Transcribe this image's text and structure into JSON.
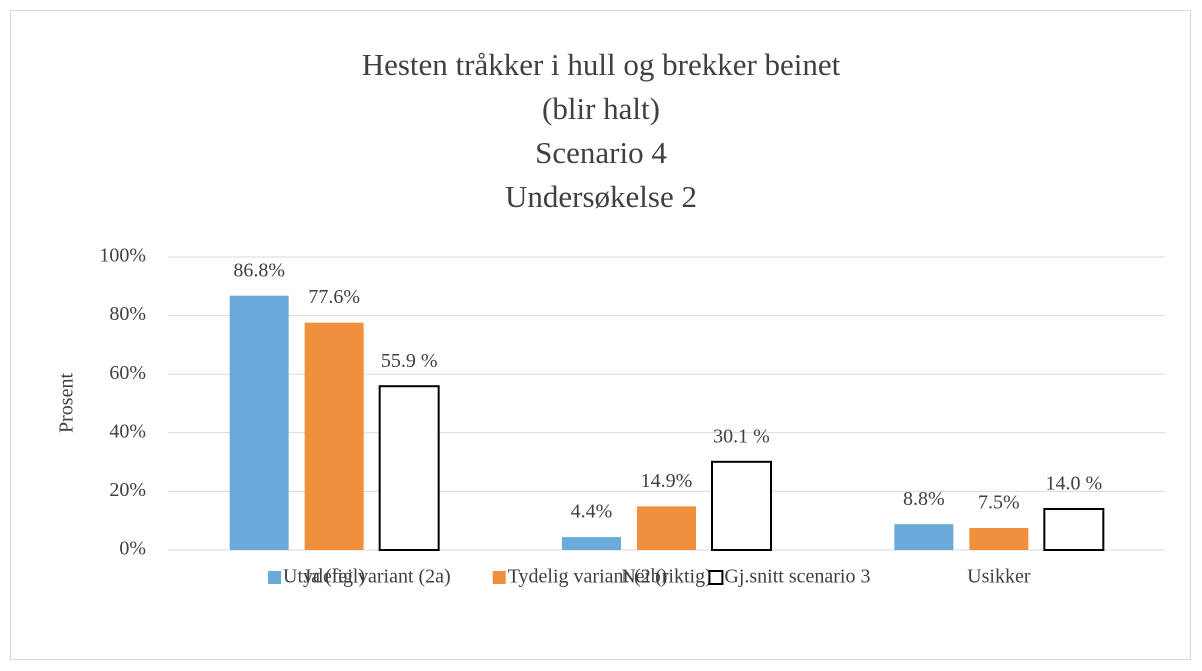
{
  "chart_data": {
    "type": "bar",
    "title": [
      "Hesten tråkker i hull og brekker beinet",
      "(blir halt)",
      "Scenario 4",
      "Undersøkelse 2"
    ],
    "ylabel": "Prosent",
    "categories": [
      "Ja (feil)",
      "Nei (riktig)",
      "Usikker"
    ],
    "series": [
      {
        "name": "Utydelig variant (2a)",
        "color": "#6aaadb",
        "values": [
          86.8,
          4.4,
          8.8
        ],
        "value_labels": [
          "86.8%",
          "4.4%",
          "8.8%"
        ]
      },
      {
        "name": "Tydelig variant (2b)",
        "color": "#f1903c",
        "values": [
          77.6,
          14.9,
          7.5
        ],
        "value_labels": [
          "77.6%",
          "14.9%",
          "7.5%"
        ]
      },
      {
        "name": "Gj.snitt scenario 3",
        "color": "#ffffff",
        "edgecolor": "#000000",
        "values": [
          55.9,
          30.1,
          14.0
        ],
        "value_labels": [
          "55.9 %",
          "30.1 %",
          "14.0 %"
        ]
      }
    ],
    "ylim": [
      0,
      100
    ],
    "yticks": [
      {
        "value": 0,
        "label": "0%"
      },
      {
        "value": 20,
        "label": "20%"
      },
      {
        "value": 40,
        "label": "40%"
      },
      {
        "value": 60,
        "label": "60%"
      },
      {
        "value": 80,
        "label": "80%"
      },
      {
        "value": 100,
        "label": "100%"
      }
    ],
    "grid": true,
    "legend": "bottom"
  }
}
